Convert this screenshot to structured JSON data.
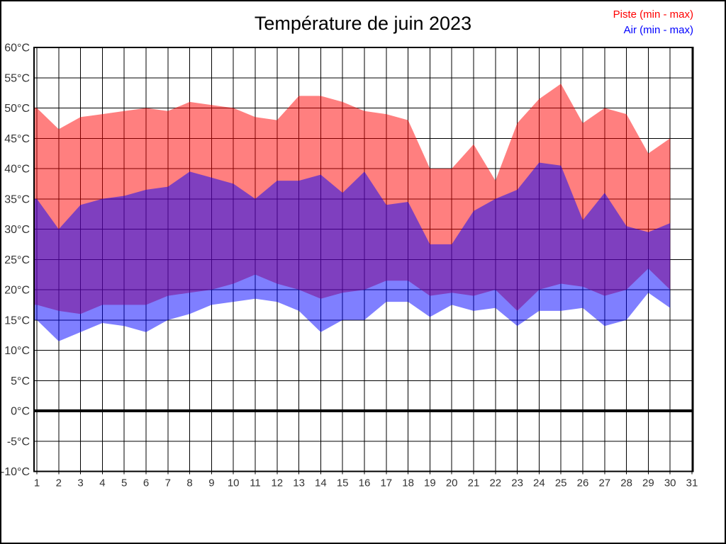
{
  "chart_data": {
    "type": "area",
    "title": "Température de juin 2023",
    "xlabel": "",
    "ylabel": "",
    "xlim": [
      1,
      31
    ],
    "ylim": [
      -10,
      60
    ],
    "grid": true,
    "zero_line_value": 0,
    "legend_position": "top-right",
    "x": [
      1,
      2,
      3,
      4,
      5,
      6,
      7,
      8,
      9,
      10,
      11,
      12,
      13,
      14,
      15,
      16,
      17,
      18,
      19,
      20,
      21,
      22,
      23,
      24,
      25,
      26,
      27,
      28,
      29,
      30
    ],
    "x_axis_ticks": [
      "1",
      "2",
      "3",
      "4",
      "5",
      "6",
      "7",
      "8",
      "9",
      "10",
      "11",
      "12",
      "13",
      "14",
      "15",
      "16",
      "17",
      "18",
      "19",
      "20",
      "21",
      "22",
      "23",
      "24",
      "25",
      "26",
      "27",
      "28",
      "29",
      "30",
      "31"
    ],
    "y_axis_ticks": [
      "60°C",
      "55°C",
      "50°C",
      "45°C",
      "40°C",
      "35°C",
      "30°C",
      "25°C",
      "20°C",
      "15°C",
      "10°C",
      "5°C",
      "0°C",
      "-5°C",
      "-10°C"
    ],
    "y_tick_values": [
      60,
      55,
      50,
      45,
      40,
      35,
      30,
      25,
      20,
      15,
      10,
      5,
      0,
      -5,
      -10
    ],
    "series": [
      {
        "name": "Piste (min - max)",
        "legend_color": "#ff0000",
        "fill": "rgba(255,0,0,0.5)",
        "max": [
          50,
          46.5,
          48.5,
          49,
          49.5,
          50,
          49.5,
          51,
          50.5,
          50,
          48.5,
          48,
          52,
          52,
          51,
          49.5,
          49,
          48,
          40,
          40,
          44,
          38,
          47.5,
          51.5,
          54,
          47.5,
          50,
          49,
          42.5,
          45
        ],
        "min": [
          17.5,
          16.5,
          16,
          17.5,
          17.5,
          17.5,
          19,
          19.5,
          20,
          21,
          22.5,
          21,
          20,
          18.5,
          19.5,
          20,
          21.5,
          21.5,
          19,
          19.5,
          19,
          20,
          16.5,
          20,
          21,
          20.5,
          19,
          20,
          23.5,
          20
        ]
      },
      {
        "name": "Air (min - max)",
        "legend_color": "#0000ff",
        "fill": "rgba(0,0,255,0.5)",
        "max": [
          35,
          30,
          34,
          35,
          35.5,
          36.5,
          37,
          39.5,
          38.5,
          37.5,
          35,
          38,
          38,
          39,
          36,
          39.5,
          34,
          34.5,
          27.5,
          27.5,
          33,
          35,
          36.5,
          41,
          40.5,
          31.5,
          36,
          30.5,
          29.5,
          31
        ],
        "min": [
          15,
          11.5,
          13,
          14.5,
          14,
          13,
          15,
          16,
          17.5,
          18,
          18.5,
          18,
          16.5,
          13,
          15,
          15,
          18,
          18,
          15.5,
          17.5,
          16.5,
          17,
          14,
          16.5,
          16.5,
          17,
          14,
          15,
          19.5,
          17
        ]
      }
    ],
    "grid_color": "#000000",
    "zero_line_color": "#000000",
    "frame_color": "#000000"
  }
}
